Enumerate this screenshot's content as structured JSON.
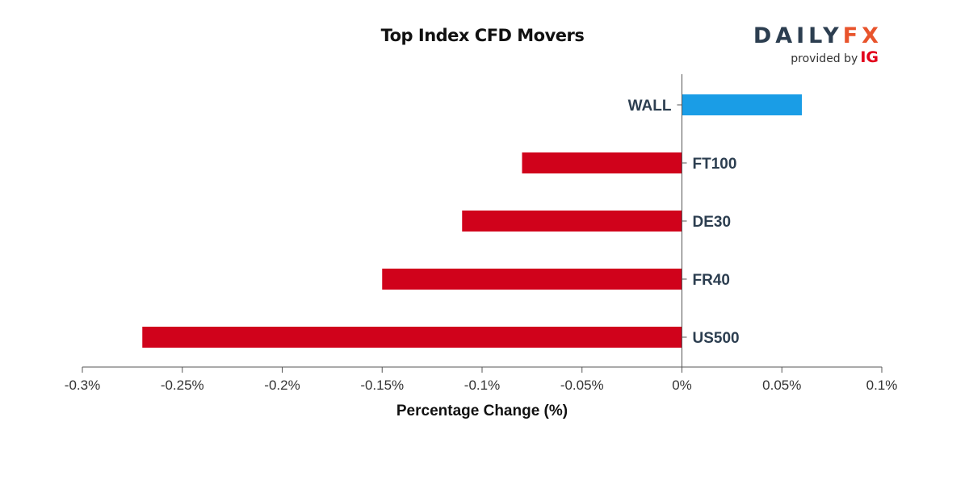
{
  "header": {
    "title": "Top Index CFD Movers"
  },
  "logo": {
    "brand_left": "DAILY",
    "brand_right": "FX",
    "provided_by": "provided by",
    "provider": "IG"
  },
  "colors": {
    "positive": "#1a9de6",
    "negative": "#d0021b",
    "axis": "#555555",
    "label": "#2c3e50",
    "brand": "#2c3e50",
    "brand_accent": "#e8542c",
    "provider_accent": "#e2001a"
  },
  "chart_data": {
    "type": "bar",
    "orientation": "horizontal",
    "title": "Top Index CFD Movers",
    "xlabel": "Percentage Change (%)",
    "ylabel": "",
    "categories": [
      "WALL",
      "FT100",
      "DE30",
      "FR40",
      "US500"
    ],
    "values": [
      0.06,
      -0.08,
      -0.11,
      -0.15,
      -0.27
    ],
    "xlim": [
      -0.3,
      0.1
    ],
    "ticks": [
      -0.3,
      -0.25,
      -0.2,
      -0.15,
      -0.1,
      -0.05,
      0,
      0.05,
      0.1
    ],
    "tick_labels": [
      "-0.3%",
      "-0.25%",
      "-0.2%",
      "-0.15%",
      "-0.1%",
      "-0.05%",
      "0%",
      "0.05%",
      "0.1%"
    ],
    "grid": false,
    "legend": "none"
  }
}
